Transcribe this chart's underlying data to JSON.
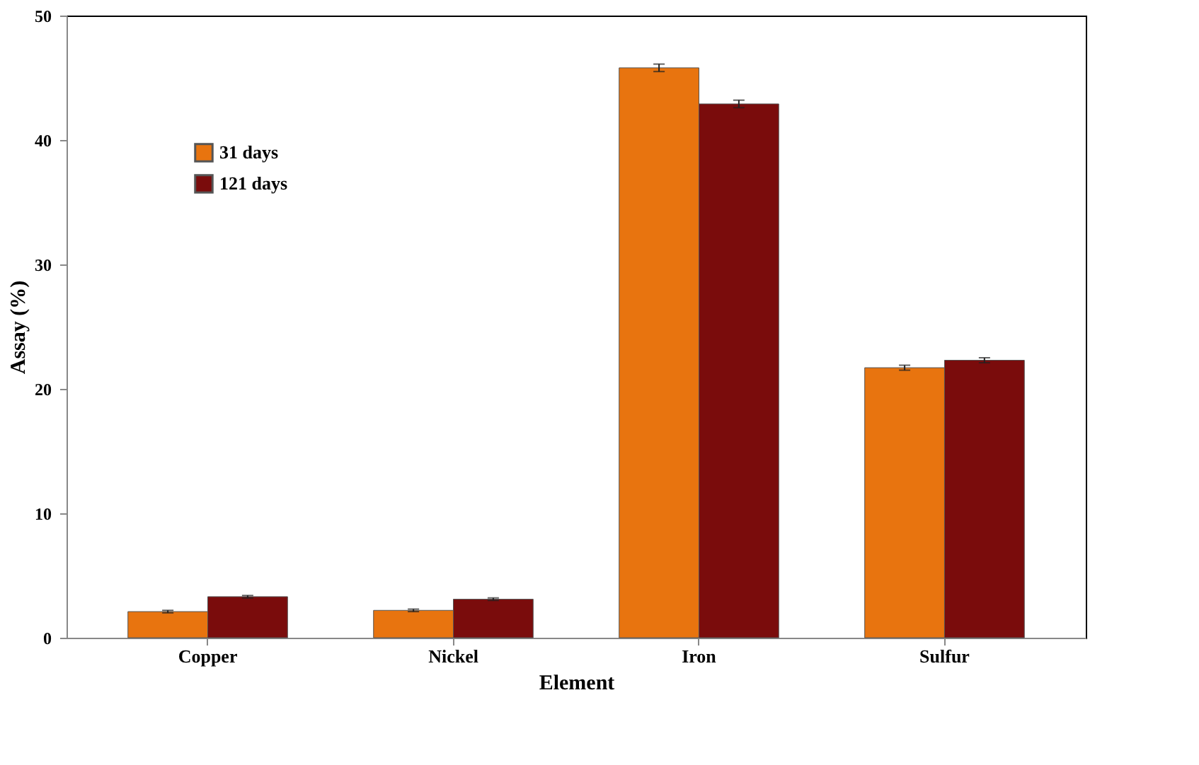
{
  "chart_data": {
    "type": "bar",
    "xlabel": "Element",
    "ylabel": "Assay (%)",
    "categories": [
      "Copper",
      "Nickel",
      "Iron",
      "Sulfur"
    ],
    "series": [
      {
        "name": "31 days",
        "color": "#e8740f",
        "values": [
          2.1,
          2.2,
          45.8,
          21.7
        ],
        "errors": [
          0.1,
          0.1,
          0.3,
          0.2
        ]
      },
      {
        "name": "121 days",
        "color": "#7a0c0c",
        "values": [
          3.3,
          3.1,
          42.9,
          22.3
        ],
        "errors": [
          0.1,
          0.1,
          0.3,
          0.2
        ]
      }
    ],
    "ylim": [
      0,
      50
    ],
    "yticks": [
      0,
      10,
      20,
      30,
      40,
      50
    ],
    "grid": false,
    "legend": "top left"
  }
}
